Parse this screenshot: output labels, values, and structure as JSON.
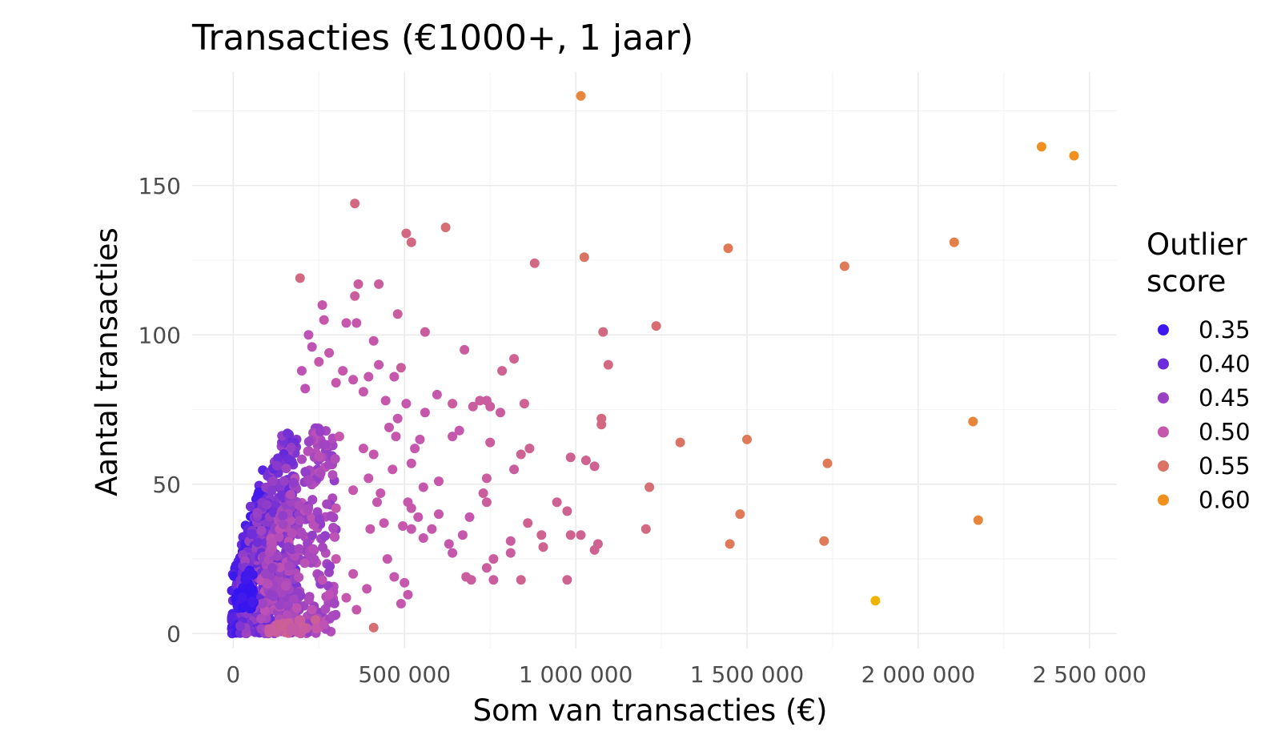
{
  "chart_data": {
    "type": "scatter",
    "title": "Transacties (€1000+, 1 jaar)",
    "xlabel": "Som van transacties (€)",
    "ylabel": "Aantal transacties",
    "xlim": [
      -120000,
      2580000
    ],
    "ylim": [
      -5,
      188
    ],
    "x_ticks": [
      0,
      500000,
      1000000,
      1500000,
      2000000,
      2500000
    ],
    "x_tick_labels": [
      "0",
      "500 000",
      "1 000 000",
      "1 500 000",
      "2 000 000",
      "2 500 000"
    ],
    "y_ticks": [
      0,
      50,
      100,
      150
    ],
    "y_tick_labels": [
      "0",
      "50",
      "100",
      "150"
    ],
    "grid": true,
    "legend": {
      "title": "Outlier score",
      "position": "right",
      "entries": [
        {
          "label": "0.35",
          "value": 0.35
        },
        {
          "label": "0.40",
          "value": 0.4
        },
        {
          "label": "0.45",
          "value": 0.45
        },
        {
          "label": "0.50",
          "value": 0.5
        },
        {
          "label": "0.55",
          "value": 0.55
        },
        {
          "label": "0.60",
          "value": 0.6
        }
      ]
    },
    "color_scale": {
      "low": "#2a0ff5",
      "mid": "#c354b3",
      "high": "#f0901e",
      "extreme": "#f0b400",
      "domain": [
        0.33,
        0.63
      ]
    },
    "points": [
      [
        1015000,
        180,
        0.58
      ],
      [
        2360000,
        163,
        0.6
      ],
      [
        2455000,
        160,
        0.6
      ],
      [
        355000,
        144,
        0.53
      ],
      [
        620000,
        136,
        0.54
      ],
      [
        505000,
        134,
        0.53
      ],
      [
        520000,
        131,
        0.53
      ],
      [
        1445000,
        129,
        0.56
      ],
      [
        2105000,
        131,
        0.57
      ],
      [
        1025000,
        126,
        0.55
      ],
      [
        880000,
        124,
        0.53
      ],
      [
        1785000,
        123,
        0.56
      ],
      [
        195000,
        119,
        0.53
      ],
      [
        365000,
        117,
        0.51
      ],
      [
        425000,
        117,
        0.51
      ],
      [
        355000,
        113,
        0.51
      ],
      [
        260000,
        110,
        0.5
      ],
      [
        480000,
        107,
        0.51
      ],
      [
        1235000,
        103,
        0.54
      ],
      [
        1080000,
        101,
        0.53
      ],
      [
        560000,
        101,
        0.51
      ],
      [
        330000,
        104,
        0.5
      ],
      [
        360000,
        104,
        0.5
      ],
      [
        265000,
        105,
        0.5
      ],
      [
        410000,
        98,
        0.5
      ],
      [
        1095000,
        90,
        0.53
      ],
      [
        820000,
        92,
        0.52
      ],
      [
        785000,
        88,
        0.52
      ],
      [
        675000,
        95,
        0.51
      ],
      [
        490000,
        89,
        0.51
      ],
      [
        1075000,
        72,
        0.53
      ],
      [
        1075000,
        70,
        0.53
      ],
      [
        2160000,
        71,
        0.58
      ],
      [
        1305000,
        64,
        0.55
      ],
      [
        1500000,
        65,
        0.56
      ],
      [
        1735000,
        57,
        0.56
      ],
      [
        1215000,
        49,
        0.54
      ],
      [
        1480000,
        40,
        0.56
      ],
      [
        2175000,
        38,
        0.58
      ],
      [
        1450000,
        30,
        0.56
      ],
      [
        1725000,
        31,
        0.56
      ],
      [
        1875000,
        11,
        0.63
      ],
      [
        410000,
        2,
        0.54
      ],
      [
        985000,
        59,
        0.52
      ],
      [
        1030000,
        58,
        0.52
      ],
      [
        1055000,
        56,
        0.52
      ],
      [
        945000,
        44,
        0.52
      ],
      [
        975000,
        41,
        0.52
      ],
      [
        985000,
        33,
        0.52
      ],
      [
        1015000,
        33,
        0.52
      ],
      [
        1065000,
        30,
        0.52
      ],
      [
        1055000,
        28,
        0.52
      ],
      [
        1205000,
        35,
        0.53
      ],
      [
        975000,
        18,
        0.52
      ],
      [
        840000,
        18,
        0.52
      ],
      [
        640000,
        77,
        0.51
      ],
      [
        700000,
        76,
        0.51
      ],
      [
        750000,
        76,
        0.51
      ],
      [
        780000,
        74,
        0.51
      ],
      [
        850000,
        77,
        0.52
      ],
      [
        720000,
        78,
        0.51
      ],
      [
        740000,
        78,
        0.51
      ],
      [
        750000,
        64,
        0.51
      ],
      [
        840000,
        60,
        0.52
      ],
      [
        865000,
        62,
        0.52
      ],
      [
        820000,
        55,
        0.51
      ],
      [
        740000,
        52,
        0.51
      ],
      [
        730000,
        47,
        0.51
      ],
      [
        740000,
        44,
        0.51
      ],
      [
        690000,
        39,
        0.5
      ],
      [
        860000,
        37,
        0.52
      ],
      [
        900000,
        33,
        0.52
      ],
      [
        810000,
        31,
        0.51
      ],
      [
        760000,
        25,
        0.51
      ],
      [
        740000,
        22,
        0.51
      ],
      [
        695000,
        18,
        0.51
      ],
      [
        680000,
        19,
        0.51
      ],
      [
        810000,
        27,
        0.51
      ],
      [
        760000,
        18,
        0.51
      ],
      [
        905000,
        29,
        0.52
      ],
      [
        640000,
        27,
        0.5
      ],
      [
        670000,
        33,
        0.5
      ],
      [
        630000,
        30,
        0.5
      ],
      [
        600000,
        51,
        0.5
      ],
      [
        640000,
        66,
        0.5
      ],
      [
        660000,
        68,
        0.5
      ],
      [
        595000,
        80,
        0.5
      ],
      [
        560000,
        74,
        0.5
      ],
      [
        545000,
        65,
        0.5
      ],
      [
        530000,
        62,
        0.5
      ],
      [
        520000,
        57,
        0.5
      ],
      [
        555000,
        49,
        0.5
      ],
      [
        540000,
        39,
        0.5
      ],
      [
        520000,
        35,
        0.5
      ],
      [
        555000,
        32,
        0.5
      ],
      [
        580000,
        35,
        0.5
      ],
      [
        600000,
        40,
        0.5
      ],
      [
        500000,
        17,
        0.5
      ],
      [
        490000,
        10,
        0.5
      ],
      [
        470000,
        19,
        0.5
      ],
      [
        510000,
        13,
        0.5
      ],
      [
        450000,
        25,
        0.5
      ],
      [
        440000,
        37,
        0.5
      ],
      [
        430000,
        47,
        0.5
      ],
      [
        465000,
        55,
        0.5
      ],
      [
        475000,
        66,
        0.5
      ],
      [
        455000,
        69,
        0.5
      ],
      [
        445000,
        78,
        0.5
      ],
      [
        480000,
        72,
        0.5
      ],
      [
        505000,
        77,
        0.5
      ],
      [
        470000,
        86,
        0.5
      ],
      [
        425000,
        90,
        0.5
      ],
      [
        395000,
        86,
        0.5
      ],
      [
        380000,
        81,
        0.5
      ],
      [
        350000,
        85,
        0.5
      ],
      [
        320000,
        88,
        0.5
      ],
      [
        300000,
        84,
        0.5
      ],
      [
        280000,
        94,
        0.5
      ],
      [
        250000,
        91,
        0.5
      ],
      [
        230000,
        96,
        0.49
      ],
      [
        220000,
        100,
        0.49
      ],
      [
        200000,
        88,
        0.49
      ],
      [
        210000,
        82,
        0.49
      ],
      [
        360000,
        8,
        0.5
      ],
      [
        390000,
        15,
        0.5
      ],
      [
        330000,
        12,
        0.5
      ],
      [
        350000,
        20,
        0.5
      ],
      [
        300000,
        25,
        0.5
      ],
      [
        280000,
        13,
        0.49
      ],
      [
        260000,
        18,
        0.49
      ],
      [
        400000,
        35,
        0.5
      ],
      [
        420000,
        44,
        0.5
      ],
      [
        510000,
        44,
        0.5
      ],
      [
        520000,
        42,
        0.5
      ],
      [
        495000,
        36,
        0.5
      ],
      [
        410000,
        60,
        0.5
      ],
      [
        380000,
        62,
        0.5
      ],
      [
        395000,
        52,
        0.5
      ],
      [
        350000,
        48,
        0.5
      ],
      [
        265000,
        3,
        0.49
      ],
      [
        230000,
        8,
        0.49
      ],
      [
        300000,
        42,
        0.5
      ],
      [
        310000,
        66,
        0.5
      ]
    ],
    "clouds": [
      {
        "x": [
          -5000,
          110000
        ],
        "y": [
          0,
          55
        ],
        "density": 260,
        "score": [
          0.35,
          0.41
        ]
      },
      {
        "x": [
          20000,
          190000
        ],
        "y": [
          0,
          68
        ],
        "density": 420,
        "score": [
          0.39,
          0.46
        ]
      },
      {
        "x": [
          80000,
          300000
        ],
        "y": [
          0,
          70
        ],
        "density": 300,
        "score": [
          0.44,
          0.49
        ]
      },
      {
        "x": [
          10000,
          60000
        ],
        "y": [
          8,
          22
        ],
        "density": 60,
        "score": [
          0.34,
          0.36
        ]
      },
      {
        "x": [
          100000,
          260000
        ],
        "y": [
          0,
          6
        ],
        "density": 40,
        "score": [
          0.5,
          0.52
        ]
      }
    ]
  }
}
